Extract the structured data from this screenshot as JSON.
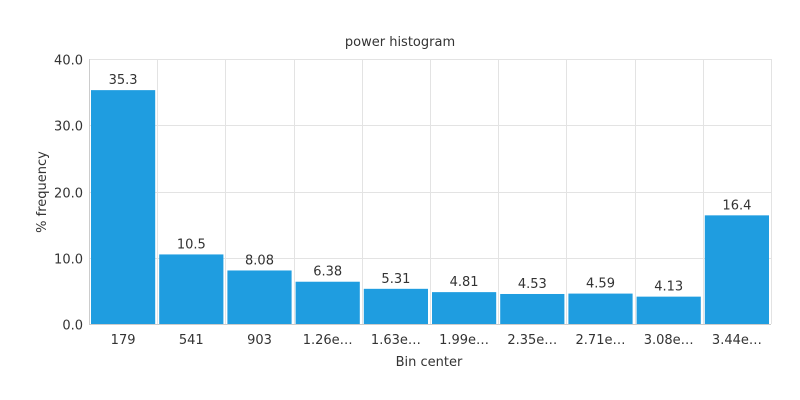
{
  "chart_data": {
    "type": "bar",
    "title": "power histogram",
    "xlabel": "Bin center",
    "ylabel": "% frequency",
    "categories": [
      "179",
      "541",
      "903",
      "1.26e…",
      "1.63e…",
      "1.99e…",
      "2.35e…",
      "2.71e…",
      "3.08e…",
      "3.44e…"
    ],
    "values": [
      35.3,
      10.5,
      8.08,
      6.38,
      5.31,
      4.81,
      4.53,
      4.59,
      4.13,
      16.4
    ],
    "value_labels": [
      "35.3",
      "10.5",
      "8.08",
      "6.38",
      "5.31",
      "4.81",
      "4.53",
      "4.59",
      "4.13",
      "16.4"
    ],
    "ylim": [
      0,
      40
    ],
    "yticks": [
      0,
      10,
      20,
      30,
      40
    ],
    "ytick_labels": [
      "0.0",
      "10.0",
      "20.0",
      "30.0",
      "40.0"
    ],
    "grid": true,
    "legend": "none",
    "colors": {
      "bar": "#1f9de0",
      "grid": "#e3e3e3",
      "axis": "#cccccc"
    }
  }
}
